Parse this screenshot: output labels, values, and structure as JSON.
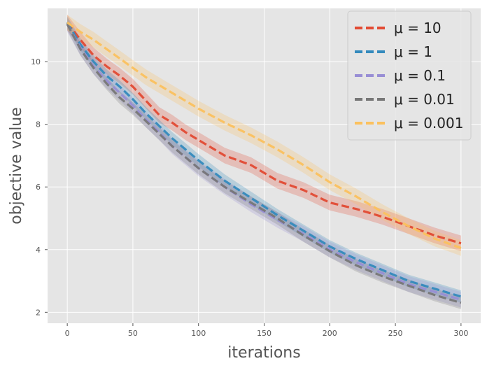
{
  "chart_data": {
    "type": "line",
    "title": "",
    "xlabel": "iterations",
    "ylabel": "objective value",
    "xlim": [
      -15,
      315
    ],
    "ylim": [
      1.65,
      11.7
    ],
    "xticks": [
      0,
      50,
      100,
      150,
      200,
      250,
      300
    ],
    "yticks": [
      2,
      4,
      6,
      8,
      10
    ],
    "grid": true,
    "legend_position": "top-right",
    "x": [
      0,
      10,
      20,
      30,
      40,
      50,
      60,
      70,
      80,
      90,
      100,
      120,
      140,
      160,
      180,
      200,
      220,
      240,
      260,
      280,
      300
    ],
    "series": [
      {
        "name": "μ = 10",
        "color": "#e24a33",
        "values": [
          11.25,
          10.7,
          10.2,
          9.85,
          9.55,
          9.2,
          8.75,
          8.3,
          8.05,
          7.75,
          7.5,
          7.0,
          6.7,
          6.2,
          5.9,
          5.5,
          5.3,
          5.05,
          4.75,
          4.45,
          4.2
        ],
        "band": 0.25
      },
      {
        "name": "μ = 1",
        "color": "#348abd",
        "values": [
          11.25,
          10.55,
          10.0,
          9.55,
          9.2,
          8.8,
          8.35,
          7.95,
          7.55,
          7.2,
          6.85,
          6.2,
          5.65,
          5.1,
          4.6,
          4.1,
          3.7,
          3.35,
          3.0,
          2.75,
          2.5
        ],
        "band": 0.2
      },
      {
        "name": "μ = 0.1",
        "color": "#988ed5",
        "values": [
          11.2,
          10.45,
          9.85,
          9.4,
          9.0,
          8.6,
          8.15,
          7.75,
          7.3,
          6.95,
          6.6,
          6.0,
          5.45,
          4.95,
          4.5,
          4.0,
          3.6,
          3.25,
          2.9,
          2.65,
          2.4
        ],
        "band": 0.25
      },
      {
        "name": "μ = 0.01",
        "color": "#777777",
        "values": [
          11.2,
          10.4,
          9.8,
          9.3,
          8.85,
          8.5,
          8.1,
          7.7,
          7.3,
          6.95,
          6.6,
          6.0,
          5.5,
          5.0,
          4.45,
          3.95,
          3.5,
          3.15,
          2.85,
          2.55,
          2.3
        ],
        "band": 0.2
      },
      {
        "name": "μ = 0.001",
        "color": "#fbc15e",
        "values": [
          11.25,
          10.95,
          10.7,
          10.4,
          10.1,
          9.8,
          9.5,
          9.25,
          9.0,
          8.75,
          8.5,
          8.05,
          7.65,
          7.2,
          6.7,
          6.15,
          5.7,
          5.2,
          4.75,
          4.35,
          4.05
        ],
        "band": 0.25
      }
    ]
  }
}
